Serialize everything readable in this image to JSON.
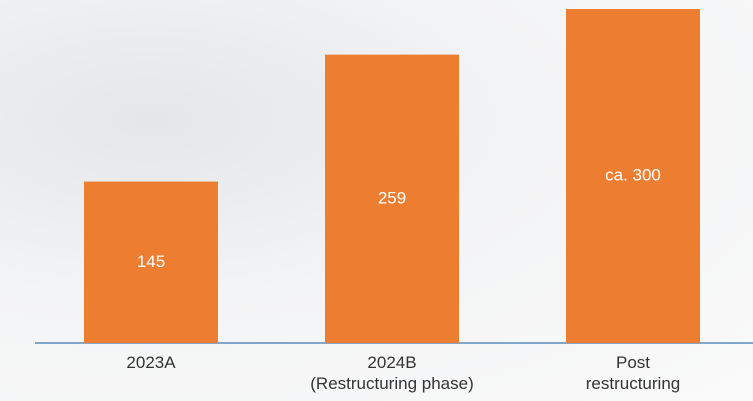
{
  "chart_data": {
    "type": "bar",
    "categories": [
      "2023A",
      "2024B\n(Restructuring phase)",
      "Post\nrestructuring"
    ],
    "values": [
      145,
      259,
      300
    ],
    "value_labels": [
      "145",
      "259",
      "ca. 300"
    ],
    "color": "#ed7d31"
  }
}
